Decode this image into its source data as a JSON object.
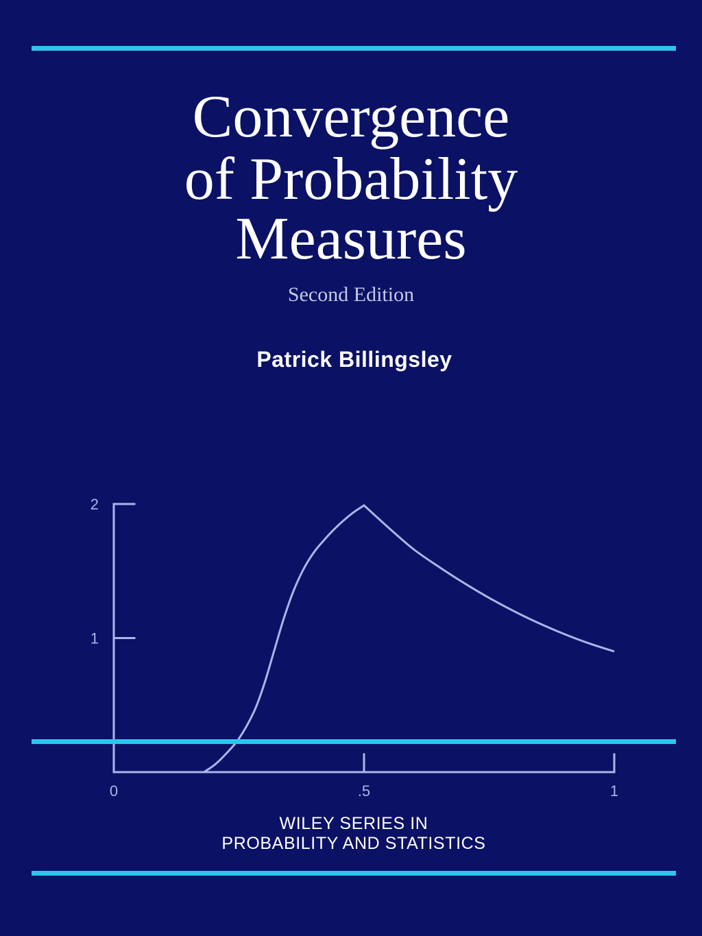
{
  "cover": {
    "title_lines": [
      "Convergence",
      "of Probability",
      "Measures"
    ],
    "edition": "Second Edition",
    "author": "Patrick Billingsley",
    "series_lines": [
      "WILEY SERIES IN",
      "PROBABILITY AND STATISTICS"
    ],
    "colors": {
      "background": "#0b1164",
      "accent_rule": "#2ec4ee",
      "curve": "#a9b6ea",
      "text": "#ffffff"
    }
  },
  "chart_data": {
    "type": "line",
    "title": "",
    "xlabel": "",
    "ylabel": "",
    "xlim": [
      0,
      1
    ],
    "ylim": [
      0,
      2
    ],
    "x_ticks": [
      {
        "value": 0,
        "label": "0"
      },
      {
        "value": 0.5,
        "label": ".5"
      },
      {
        "value": 1,
        "label": "1"
      }
    ],
    "y_ticks": [
      {
        "value": 1,
        "label": "1"
      },
      {
        "value": 2,
        "label": "2"
      }
    ],
    "grid": false,
    "series": [
      {
        "x": [
          0.18,
          0.2,
          0.22,
          0.25,
          0.28,
          0.3,
          0.32,
          0.34,
          0.36,
          0.38,
          0.4,
          0.42,
          0.44,
          0.46,
          0.48,
          0.5,
          0.55,
          0.6,
          0.65,
          0.7,
          0.75,
          0.8,
          0.85,
          0.9,
          0.95,
          1.0
        ],
        "y": [
          0.0,
          0.05,
          0.12,
          0.25,
          0.45,
          0.65,
          0.9,
          1.15,
          1.36,
          1.52,
          1.64,
          1.73,
          1.81,
          1.88,
          1.94,
          1.99,
          1.82,
          1.66,
          1.53,
          1.41,
          1.3,
          1.2,
          1.11,
          1.03,
          0.96,
          0.9
        ]
      }
    ]
  }
}
